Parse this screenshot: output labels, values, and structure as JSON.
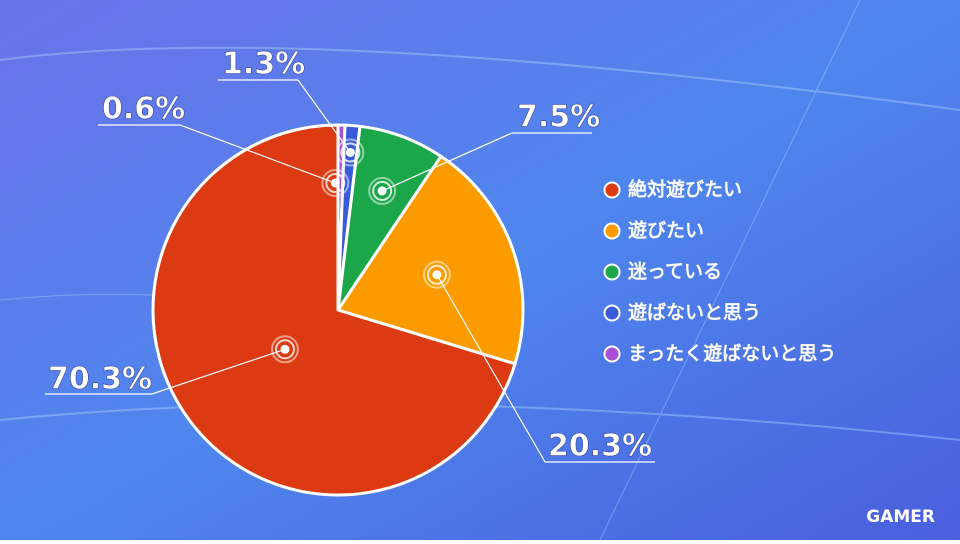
{
  "chart_data": {
    "type": "pie",
    "categories": [
      "絶対遊びたい",
      "遊びたい",
      "迷っている",
      "遊ばないと思う",
      "まったく遊ばないと思う"
    ],
    "values": [
      70.3,
      20.3,
      7.5,
      1.3,
      0.6
    ],
    "value_labels": [
      "70.3%",
      "20.3%",
      "7.5%",
      "1.3%",
      "0.6%"
    ],
    "colors": [
      "#dc3a12",
      "#fb9b00",
      "#1ba64a",
      "#3a5bd9",
      "#a84fd8"
    ],
    "start": "top",
    "direction": "counterclockwise-from-last"
  },
  "logo": "GAMER"
}
